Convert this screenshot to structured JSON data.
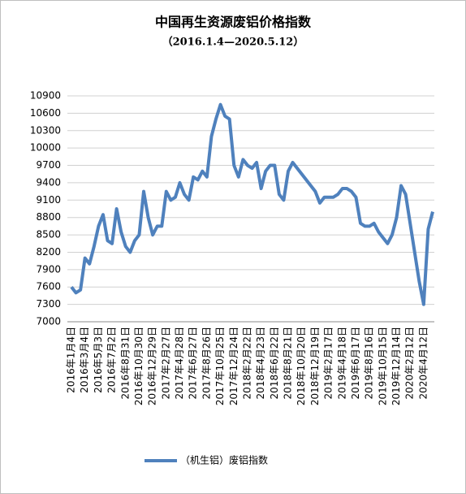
{
  "chart_data": {
    "type": "line",
    "title": "中国再生资源废铝价格指数",
    "subtitle": "（2016.1.4—2020.5.12）",
    "categories": [
      "2016年1月4日",
      null,
      null,
      "2016年3月4日",
      null,
      null,
      "2016年5月3日",
      null,
      null,
      "2016年7月2日",
      null,
      null,
      "2016年8月31日",
      null,
      null,
      "2016年10月30日",
      null,
      null,
      "2016年12月29日",
      null,
      null,
      "2017年2月27日",
      null,
      null,
      "2017年4月28日",
      null,
      null,
      "2017年6月27日",
      null,
      null,
      "2017年8月26日",
      null,
      null,
      "2017年10月25日",
      null,
      null,
      "2017年12月24日",
      null,
      null,
      "2018年2月22日",
      null,
      null,
      "2018年4月23日",
      null,
      null,
      "2018年6月22日",
      null,
      null,
      "2018年8月21日",
      null,
      null,
      "2018年10月20日",
      null,
      null,
      "2018年12月19日",
      null,
      null,
      "2019年2月17日",
      null,
      null,
      "2019年4月18日",
      null,
      null,
      "2019年6月17日",
      null,
      null,
      "2019年8月16日",
      null,
      null,
      "2019年10月15日",
      null,
      null,
      "2019年12月14日",
      null,
      null,
      "2020年2月12日",
      null,
      null,
      "2020年4月12日",
      null,
      null
    ],
    "series": [
      {
        "name": "（机生铝）废铝指数",
        "color": "#4f81bd",
        "values": [
          7600,
          7500,
          7550,
          8100,
          8000,
          8300,
          8650,
          8850,
          8400,
          8350,
          8950,
          8550,
          8300,
          8200,
          8400,
          8500,
          9250,
          8800,
          8500,
          8650,
          8650,
          9250,
          9100,
          9150,
          9400,
          9200,
          9100,
          9500,
          9450,
          9600,
          9500,
          10200,
          10500,
          10750,
          10550,
          10500,
          9700,
          9500,
          9800,
          9700,
          9650,
          9750,
          9300,
          9600,
          9700,
          9700,
          9200,
          9100,
          9600,
          9750,
          9650,
          9550,
          9450,
          9350,
          9250,
          9050,
          9150,
          9150,
          9150,
          9200,
          9300,
          9300,
          9250,
          9150,
          8700,
          8650,
          8650,
          8700,
          8550,
          8450,
          8350,
          8500,
          8800,
          9350,
          9200,
          8700,
          8200,
          7700,
          7300,
          8600,
          8900
        ]
      }
    ],
    "ylim": [
      7000,
      10900
    ],
    "yticks": [
      7000,
      7300,
      7600,
      7900,
      8200,
      8500,
      8800,
      9100,
      9400,
      9700,
      10000,
      10300,
      10600,
      10900
    ],
    "grid": true,
    "legend": "bottom"
  }
}
